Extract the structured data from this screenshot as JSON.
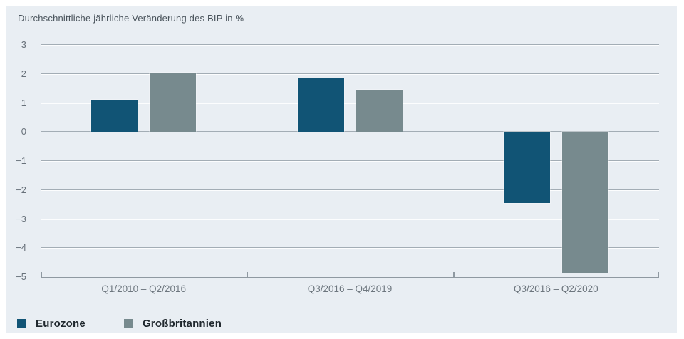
{
  "title": "Durchschnittliche jährliche Veränderung des BIP in %",
  "chart_data": {
    "type": "bar",
    "title": "Durchschnittliche jährliche Veränderung des BIP in %",
    "categories": [
      "Q1/2010 – Q2/2016",
      "Q3/2016 – Q4/2019",
      "Q3/2016 – Q2/2020"
    ],
    "series": [
      {
        "name": "Eurozone",
        "color": "#115475",
        "values": [
          1.1,
          1.85,
          -2.45
        ]
      },
      {
        "name": "Großbritannien",
        "color": "#778a8e",
        "values": [
          2.05,
          1.45,
          -4.85
        ]
      }
    ],
    "ylim": [
      -5,
      3
    ],
    "ytick_step": 1,
    "y_ticks": [
      "3",
      "2",
      "1",
      "0",
      "−1",
      "−2",
      "−3",
      "−4",
      "−5"
    ],
    "grid": true,
    "legend_position": "bottom-left"
  },
  "colors": {
    "page_bg": "#ffffff",
    "panel_bg": "#e9eef3",
    "gridline": "#a3adb5",
    "axis": "#8f99a1",
    "tick_label": "#68717a",
    "category_label": "#6d767e",
    "title_text": "#4a545c",
    "legend_text": "#20282e"
  },
  "legend": {
    "items": [
      {
        "label": "Eurozone",
        "color": "#115475"
      },
      {
        "label": "Großbritannien",
        "color": "#778a8e"
      }
    ]
  }
}
